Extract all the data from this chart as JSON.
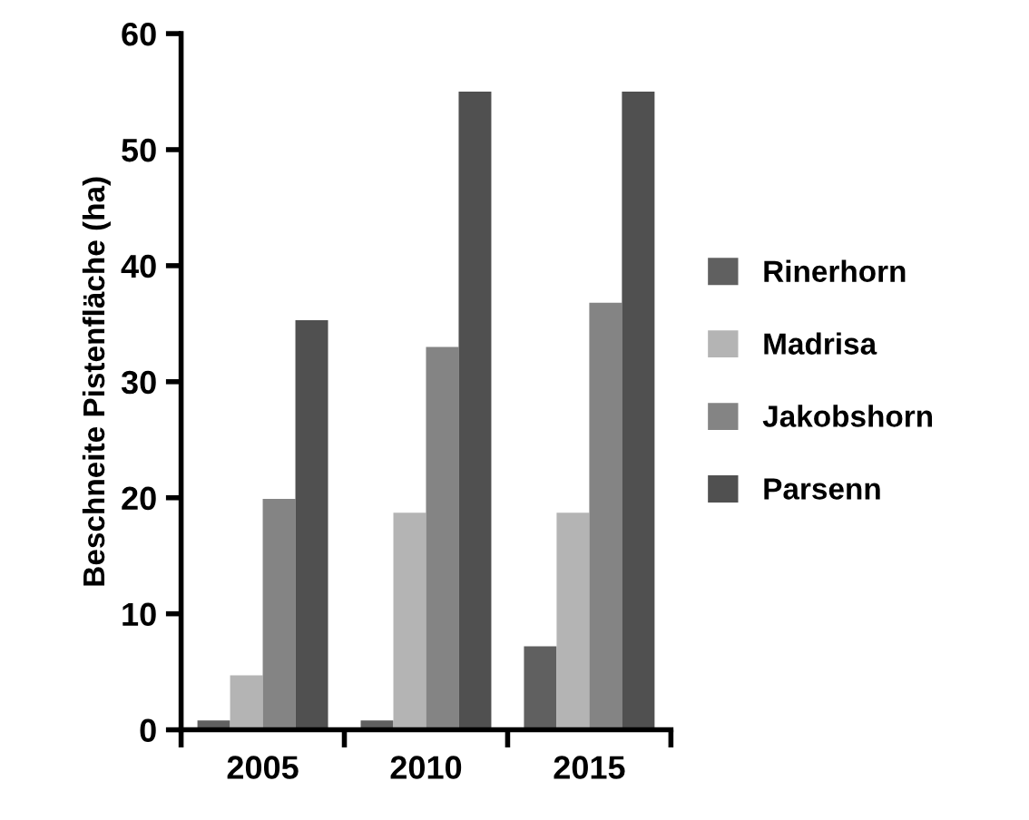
{
  "chart_data": {
    "type": "bar",
    "ylabel": "Beschneite Pistenfläche (ha)",
    "categories": [
      "2005",
      "2010",
      "2015"
    ],
    "series": [
      {
        "name": "Rinerhorn",
        "color": "#606060",
        "values": [
          0.8,
          0.8,
          7.2
        ]
      },
      {
        "name": "Madrisa",
        "color": "#b4b4b4",
        "values": [
          4.7,
          18.7,
          18.7
        ]
      },
      {
        "name": "Jakobshorn",
        "color": "#848484",
        "values": [
          19.9,
          33.0,
          36.8
        ]
      },
      {
        "name": "Parsenn",
        "color": "#505050",
        "values": [
          35.3,
          55,
          55
        ]
      }
    ],
    "ylim": [
      0,
      60
    ],
    "yticks": [
      0,
      10,
      20,
      30,
      40,
      50,
      60
    ],
    "grid": false,
    "legend": "right"
  }
}
